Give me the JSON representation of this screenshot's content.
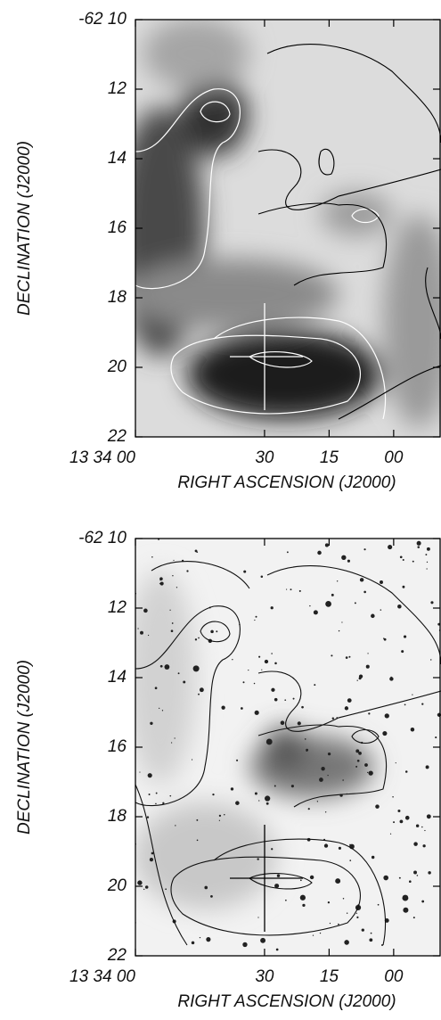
{
  "chart_data": [
    {
      "type": "image",
      "xlabel": "RIGHT ASCENSION (J2000)",
      "ylabel": "DECLINATION (J2000)",
      "xlim": [
        48840,
        48769
      ],
      "ylim": [
        10,
        22
      ],
      "xticks": [
        {
          "value": 48840,
          "label": "13 34 00"
        },
        {
          "value": 48810,
          "label": "30"
        },
        {
          "value": 48795,
          "label": "15"
        },
        {
          "value": 48780,
          "label": "00"
        }
      ],
      "yticks": [
        {
          "value": 10,
          "label": "-62 10"
        },
        12,
        14,
        16,
        18,
        20,
        22
      ]
    },
    {
      "type": "image",
      "xlabel": "RIGHT ASCENSION (J2000)",
      "ylabel": "DECLINATION (J2000)",
      "xlim": [
        48840,
        48769
      ],
      "ylim": [
        10,
        22
      ],
      "xticks": [
        {
          "value": 48840,
          "label": "13 34 00"
        },
        {
          "value": 48810,
          "label": "30"
        },
        {
          "value": 48795,
          "label": "15"
        },
        {
          "value": 48780,
          "label": "00"
        }
      ],
      "yticks": [
        {
          "value": 10,
          "label": "-62 10"
        },
        12,
        14,
        16,
        18,
        20,
        22
      ]
    }
  ]
}
